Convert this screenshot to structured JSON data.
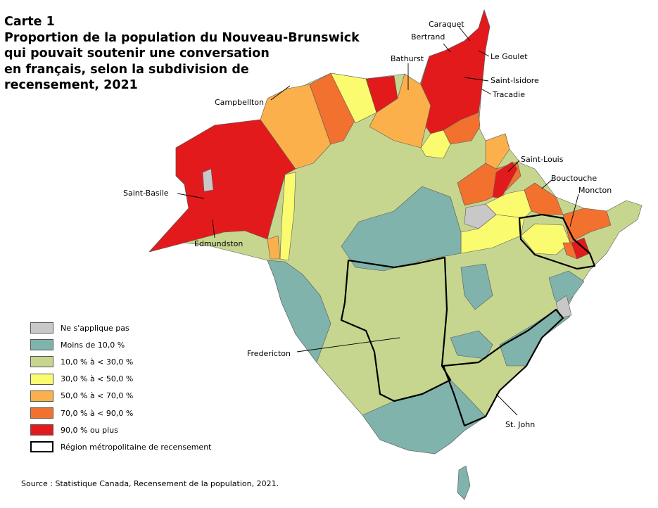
{
  "title_lines": [
    "Carte 1",
    "Proportion de la population du Nouveau-Brunswick",
    "qui pouvait soutenir une conversation",
    "en français, selon la subdivision de",
    "recensement, 2021"
  ],
  "colors": {
    "na": "#c8c8c8",
    "lt10": "#7fb3ab",
    "p10_30": "#c6d68f",
    "p30_50": "#fbfb6f",
    "p50_70": "#fbb04b",
    "p70_90": "#f2712f",
    "p90": "#e31a1c",
    "boundary": "#5a5a5a",
    "cma_border": "#000000"
  },
  "legend": [
    {
      "key": "na",
      "label": "Ne s'applique pas"
    },
    {
      "key": "lt10",
      "label": "Moins de 10,0 %"
    },
    {
      "key": "p10_30",
      "label": "10,0 % à < 30,0 %"
    },
    {
      "key": "p30_50",
      "label": "30,0 % à < 50,0 %"
    },
    {
      "key": "p50_70",
      "label": "50,0 % à < 70,0 %"
    },
    {
      "key": "p70_90",
      "label": "70,0 % à < 90,0 %"
    },
    {
      "key": "p90",
      "label": "90,0 % ou plus"
    },
    {
      "key": "cma",
      "label": "Région métropolitaine de recensement"
    }
  ],
  "places": [
    {
      "name": "Caraquet"
    },
    {
      "name": "Bertrand"
    },
    {
      "name": "Le Goulet"
    },
    {
      "name": "Bathurst"
    },
    {
      "name": "Saint-Isidore"
    },
    {
      "name": "Tracadie"
    },
    {
      "name": "Campbellton"
    },
    {
      "name": "Saint-Louis"
    },
    {
      "name": "Bouctouche"
    },
    {
      "name": "Moncton"
    },
    {
      "name": "Saint-Basile"
    },
    {
      "name": "Edmundston"
    },
    {
      "name": "Fredericton"
    },
    {
      "name": "St. John"
    }
  ],
  "source": "Source : Statistique Canada, Recensement de la population, 2021."
}
